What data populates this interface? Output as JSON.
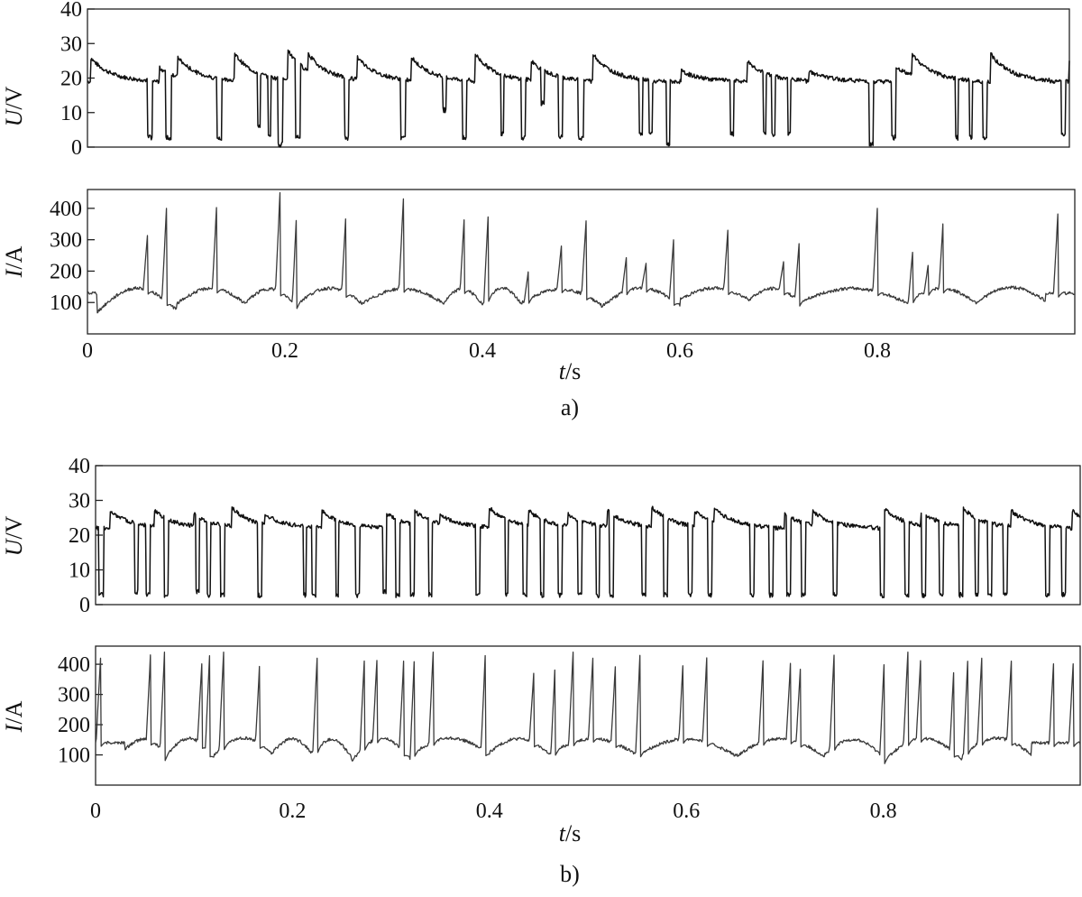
{
  "chart_data": [
    {
      "id": "a-voltage",
      "type": "line",
      "figure": "a",
      "ylabel_var": "U",
      "ylabel_unit": "/V",
      "ylim": [
        0,
        40
      ],
      "yticks": [
        0,
        10,
        20,
        30,
        40
      ],
      "xlim": [
        0,
        1
      ],
      "baseline": 19,
      "dips": [
        [
          0.061,
          0.066,
          2
        ],
        [
          0.08,
          0.085,
          2
        ],
        [
          0.132,
          0.137,
          2
        ],
        [
          0.173,
          0.176,
          5
        ],
        [
          0.184,
          0.187,
          3
        ],
        [
          0.194,
          0.199,
          0
        ],
        [
          0.212,
          0.217,
          2
        ],
        [
          0.262,
          0.266,
          2
        ],
        [
          0.319,
          0.324,
          2
        ],
        [
          0.362,
          0.365,
          10
        ],
        [
          0.382,
          0.386,
          2
        ],
        [
          0.421,
          0.424,
          3
        ],
        [
          0.442,
          0.446,
          2
        ],
        [
          0.462,
          0.465,
          12
        ],
        [
          0.48,
          0.484,
          2
        ],
        [
          0.5,
          0.505,
          2
        ],
        [
          0.562,
          0.565,
          3
        ],
        [
          0.572,
          0.575,
          3
        ],
        [
          0.59,
          0.593,
          0
        ],
        [
          0.655,
          0.658,
          3
        ],
        [
          0.688,
          0.691,
          3
        ],
        [
          0.697,
          0.7,
          3
        ],
        [
          0.713,
          0.716,
          3
        ],
        [
          0.796,
          0.8,
          0
        ],
        [
          0.819,
          0.823,
          2
        ],
        [
          0.884,
          0.887,
          2
        ],
        [
          0.898,
          0.901,
          2
        ],
        [
          0.912,
          0.916,
          2
        ],
        [
          0.992,
          0.996,
          3
        ]
      ],
      "peaks": [
        [
          0.003,
          26
        ],
        [
          0.073,
          23
        ],
        [
          0.092,
          26
        ],
        [
          0.15,
          27
        ],
        [
          0.204,
          28
        ],
        [
          0.225,
          27
        ],
        [
          0.275,
          26
        ],
        [
          0.33,
          26
        ],
        [
          0.395,
          27
        ],
        [
          0.452,
          25
        ],
        [
          0.515,
          27
        ],
        [
          0.605,
          22
        ],
        [
          0.672,
          25
        ],
        [
          0.735,
          22
        ],
        [
          0.82,
          24
        ],
        [
          0.84,
          27
        ],
        [
          0.92,
          27
        ],
        [
          1.0,
          25
        ]
      ]
    },
    {
      "id": "a-current",
      "type": "line",
      "figure": "a",
      "ylabel_var": "I",
      "ylabel_unit": "/A",
      "ylim": [
        0,
        460
      ],
      "yticks": [
        100,
        200,
        300,
        400
      ],
      "xlim": [
        0,
        1
      ],
      "baseline": 130,
      "valleys": [
        [
          0.01,
          70
        ],
        [
          0.09,
          95
        ],
        [
          0.16,
          100
        ],
        [
          0.21,
          90
        ],
        [
          0.28,
          100
        ],
        [
          0.36,
          95
        ],
        [
          0.4,
          90
        ],
        [
          0.44,
          100
        ],
        [
          0.52,
          85
        ],
        [
          0.6,
          110
        ],
        [
          0.67,
          110
        ],
        [
          0.72,
          100
        ],
        [
          0.83,
          100
        ],
        [
          0.9,
          100
        ],
        [
          0.97,
          120
        ]
      ],
      "spikes": [
        [
          0.061,
          325
        ],
        [
          0.08,
          400
        ],
        [
          0.131,
          420
        ],
        [
          0.195,
          450
        ],
        [
          0.212,
          400
        ],
        [
          0.262,
          400
        ],
        [
          0.32,
          430
        ],
        [
          0.382,
          395
        ],
        [
          0.406,
          390
        ],
        [
          0.447,
          210
        ],
        [
          0.48,
          280
        ],
        [
          0.505,
          360
        ],
        [
          0.546,
          250
        ],
        [
          0.566,
          230
        ],
        [
          0.594,
          320
        ],
        [
          0.649,
          350
        ],
        [
          0.705,
          230
        ],
        [
          0.721,
          300
        ],
        [
          0.8,
          400
        ],
        [
          0.836,
          270
        ],
        [
          0.852,
          230
        ],
        [
          0.867,
          380
        ],
        [
          0.983,
          390
        ]
      ]
    },
    {
      "id": "b-voltage",
      "type": "line",
      "figure": "b",
      "ylabel_var": "U",
      "ylabel_unit": "/V",
      "ylim": [
        0,
        40
      ],
      "yticks": [
        0,
        10,
        20,
        30,
        40
      ],
      "xlim": [
        0,
        1
      ],
      "baseline": 22,
      "dips": [
        [
          0.003,
          0.008,
          2
        ],
        [
          0.04,
          0.043,
          3
        ],
        [
          0.051,
          0.055,
          2
        ],
        [
          0.07,
          0.074,
          2
        ],
        [
          0.102,
          0.105,
          3
        ],
        [
          0.113,
          0.117,
          2
        ],
        [
          0.127,
          0.131,
          2
        ],
        [
          0.165,
          0.169,
          2
        ],
        [
          0.211,
          0.214,
          2
        ],
        [
          0.22,
          0.224,
          2
        ],
        [
          0.244,
          0.247,
          2
        ],
        [
          0.264,
          0.268,
          2
        ],
        [
          0.292,
          0.295,
          3
        ],
        [
          0.305,
          0.309,
          2
        ],
        [
          0.32,
          0.324,
          2
        ],
        [
          0.338,
          0.342,
          2
        ],
        [
          0.386,
          0.39,
          2
        ],
        [
          0.416,
          0.419,
          2
        ],
        [
          0.434,
          0.438,
          2
        ],
        [
          0.452,
          0.455,
          2
        ],
        [
          0.47,
          0.474,
          2
        ],
        [
          0.49,
          0.494,
          2
        ],
        [
          0.508,
          0.512,
          2
        ],
        [
          0.522,
          0.526,
          2
        ],
        [
          0.555,
          0.559,
          2
        ],
        [
          0.577,
          0.581,
          2
        ],
        [
          0.602,
          0.606,
          2
        ],
        [
          0.622,
          0.626,
          2
        ],
        [
          0.665,
          0.669,
          2
        ],
        [
          0.684,
          0.688,
          2
        ],
        [
          0.702,
          0.706,
          2
        ],
        [
          0.717,
          0.721,
          2
        ],
        [
          0.749,
          0.753,
          2
        ],
        [
          0.797,
          0.801,
          2
        ],
        [
          0.822,
          0.826,
          2
        ],
        [
          0.839,
          0.843,
          2
        ],
        [
          0.857,
          0.861,
          2
        ],
        [
          0.877,
          0.881,
          2
        ],
        [
          0.893,
          0.897,
          2
        ],
        [
          0.906,
          0.91,
          2
        ],
        [
          0.922,
          0.926,
          2
        ],
        [
          0.965,
          0.969,
          2
        ],
        [
          0.981,
          0.985,
          2
        ]
      ],
      "peaks": [
        [
          0.015,
          27
        ],
        [
          0.06,
          27
        ],
        [
          0.1,
          26
        ],
        [
          0.138,
          28
        ],
        [
          0.172,
          26
        ],
        [
          0.23,
          27
        ],
        [
          0.292,
          27
        ],
        [
          0.32,
          28
        ],
        [
          0.35,
          26
        ],
        [
          0.4,
          28
        ],
        [
          0.44,
          27
        ],
        [
          0.48,
          26
        ],
        [
          0.52,
          27
        ],
        [
          0.565,
          28
        ],
        [
          0.608,
          27
        ],
        [
          0.628,
          28
        ],
        [
          0.7,
          26
        ],
        [
          0.728,
          27
        ],
        [
          0.8,
          28
        ],
        [
          0.838,
          27
        ],
        [
          0.88,
          28
        ],
        [
          0.93,
          27
        ],
        [
          0.992,
          27
        ]
      ]
    },
    {
      "id": "b-current",
      "type": "line",
      "figure": "b",
      "ylabel_var": "I",
      "ylabel_unit": "/A",
      "ylim": [
        0,
        460
      ],
      "yticks": [
        100,
        200,
        300,
        400
      ],
      "xlim": [
        0,
        1
      ],
      "baseline": 140,
      "valleys": [
        [
          0.03,
          120
        ],
        [
          0.07,
          90
        ],
        [
          0.12,
          100
        ],
        [
          0.18,
          110
        ],
        [
          0.22,
          95
        ],
        [
          0.26,
          80
        ],
        [
          0.32,
          100
        ],
        [
          0.4,
          110
        ],
        [
          0.46,
          100
        ],
        [
          0.55,
          100
        ],
        [
          0.65,
          95
        ],
        [
          0.74,
          100
        ],
        [
          0.8,
          80
        ],
        [
          0.88,
          100
        ],
        [
          0.95,
          110
        ]
      ],
      "spikes": [
        [
          0.005,
          420
        ],
        [
          0.056,
          450
        ],
        [
          0.07,
          440
        ],
        [
          0.108,
          410
        ],
        [
          0.116,
          450
        ],
        [
          0.13,
          440
        ],
        [
          0.167,
          430
        ],
        [
          0.225,
          420
        ],
        [
          0.273,
          420
        ],
        [
          0.286,
          430
        ],
        [
          0.313,
          420
        ],
        [
          0.324,
          440
        ],
        [
          0.343,
          450
        ],
        [
          0.396,
          450
        ],
        [
          0.445,
          370
        ],
        [
          0.467,
          420
        ],
        [
          0.485,
          440
        ],
        [
          0.505,
          420
        ],
        [
          0.528,
          400
        ],
        [
          0.553,
          440
        ],
        [
          0.597,
          430
        ],
        [
          0.621,
          440
        ],
        [
          0.678,
          420
        ],
        [
          0.706,
          420
        ],
        [
          0.716,
          400
        ],
        [
          0.75,
          430
        ],
        [
          0.801,
          420
        ],
        [
          0.825,
          440
        ],
        [
          0.838,
          420
        ],
        [
          0.872,
          410
        ],
        [
          0.886,
          430
        ],
        [
          0.9,
          420
        ],
        [
          0.93,
          410
        ],
        [
          0.973,
          410
        ],
        [
          0.993,
          410
        ]
      ]
    }
  ],
  "x_axis": {
    "tick_labels": [
      "0",
      "0.2",
      "0.4",
      "0.6",
      "0.8"
    ],
    "tick_values": [
      0,
      0.2,
      0.4,
      0.6,
      0.8
    ],
    "label_var": "t",
    "label_unit": "/s"
  },
  "captions": {
    "a": "a)",
    "b": "b)"
  }
}
